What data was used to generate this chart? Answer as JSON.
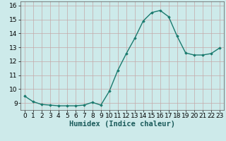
{
  "x": [
    0,
    1,
    2,
    3,
    4,
    5,
    6,
    7,
    8,
    9,
    10,
    11,
    12,
    13,
    14,
    15,
    16,
    17,
    18,
    19,
    20,
    21,
    22,
    23
  ],
  "y": [
    9.5,
    9.1,
    8.9,
    8.85,
    8.8,
    8.8,
    8.8,
    8.85,
    9.05,
    8.85,
    9.85,
    11.35,
    12.55,
    13.65,
    14.9,
    15.5,
    15.65,
    15.2,
    13.8,
    12.6,
    12.45,
    12.45,
    12.55,
    12.95
  ],
  "line_color": "#1a7a6e",
  "marker": "D",
  "marker_size": 1.8,
  "bg_color": "#cdeaea",
  "grid_color": "#c4a8a8",
  "xlabel": "Humidex (Indice chaleur)",
  "xlabel_fontsize": 7.5,
  "ylim": [
    8.5,
    16.3
  ],
  "yticks": [
    9,
    10,
    11,
    12,
    13,
    14,
    15,
    16
  ],
  "xlim": [
    -0.5,
    23.5
  ],
  "xticks": [
    0,
    1,
    2,
    3,
    4,
    5,
    6,
    7,
    8,
    9,
    10,
    11,
    12,
    13,
    14,
    15,
    16,
    17,
    18,
    19,
    20,
    21,
    22,
    23
  ],
  "tick_fontsize": 6.5,
  "linewidth": 1.0
}
